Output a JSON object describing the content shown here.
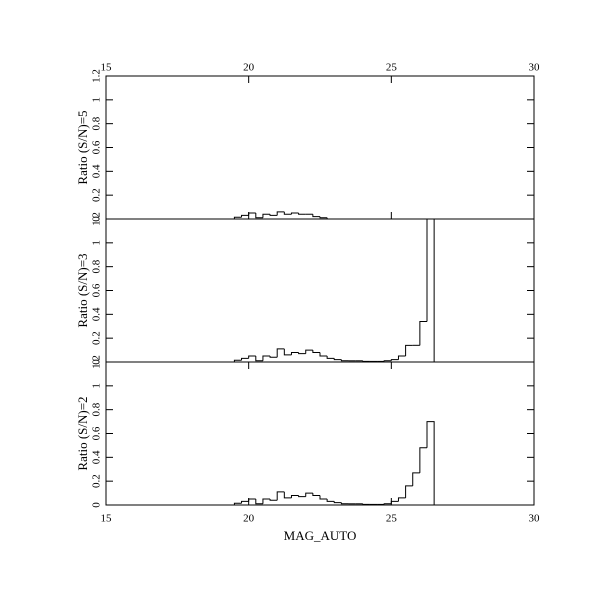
{
  "chart_data": [
    {
      "type": "histogram",
      "ylabel": "Ratio (S/N)=5",
      "bins": [
        19.5,
        19.75,
        20,
        20.25,
        20.5,
        20.75,
        21,
        21.25,
        21.5,
        21.75,
        22,
        22.25,
        22.5,
        22.75,
        23,
        23.25,
        23.5,
        23.75,
        24,
        24.25,
        24.5,
        24.75,
        25,
        25.25,
        25.5,
        25.75,
        26,
        26.25,
        26.5
      ],
      "values": [
        0.015,
        0.03,
        0.05,
        0.01,
        0.04,
        0.03,
        0.06,
        0.04,
        0.05,
        0.04,
        0.04,
        0.02,
        0.01,
        0,
        0,
        0,
        0,
        0,
        0,
        0,
        0,
        0,
        0,
        0,
        0,
        0,
        0,
        0
      ],
      "color": "#000000",
      "xlim": [
        15,
        30
      ],
      "xticks": [
        15,
        20,
        25,
        30
      ],
      "xtick_side": "top",
      "ylim": [
        0,
        1.2
      ],
      "yticks": [
        0,
        0.2,
        0.4,
        0.6,
        0.8,
        1,
        1.2
      ]
    },
    {
      "type": "histogram",
      "ylabel": "Ratio (S/N)=3",
      "bins": [
        19.5,
        19.75,
        20,
        20.25,
        20.5,
        20.75,
        21,
        21.25,
        21.5,
        21.75,
        22,
        22.25,
        22.5,
        22.75,
        23,
        23.25,
        23.5,
        23.75,
        24,
        24.25,
        24.5,
        24.75,
        25,
        25.25,
        25.5,
        25.75,
        26,
        26.25,
        26.5
      ],
      "values": [
        0.015,
        0.03,
        0.05,
        0.01,
        0.05,
        0.04,
        0.11,
        0.06,
        0.08,
        0.07,
        0.1,
        0.08,
        0.05,
        0.03,
        0.02,
        0.01,
        0.01,
        0.01,
        0.005,
        0.005,
        0.005,
        0.01,
        0.02,
        0.05,
        0.14,
        0.14,
        0.34,
        1.3
      ],
      "color": "#000000",
      "xlim": [
        15,
        30
      ],
      "ylim": [
        0,
        1.2
      ],
      "yticks": [
        0,
        0.2,
        0.4,
        0.6,
        0.8,
        1,
        1.2
      ]
    },
    {
      "type": "histogram",
      "ylabel": "Ratio (S/N)=2",
      "xlabel": "MAG_AUTO",
      "bins": [
        19.5,
        19.75,
        20,
        20.25,
        20.5,
        20.75,
        21,
        21.25,
        21.5,
        21.75,
        22,
        22.25,
        22.5,
        22.75,
        23,
        23.25,
        23.5,
        23.75,
        24,
        24.25,
        24.5,
        24.75,
        25,
        25.25,
        25.5,
        25.75,
        26,
        26.25,
        26.5
      ],
      "values": [
        0.015,
        0.03,
        0.05,
        0.01,
        0.05,
        0.04,
        0.11,
        0.06,
        0.08,
        0.07,
        0.1,
        0.08,
        0.05,
        0.03,
        0.02,
        0.01,
        0.01,
        0.01,
        0.005,
        0.005,
        0.005,
        0.01,
        0.03,
        0.06,
        0.16,
        0.27,
        0.48,
        0.7
      ],
      "color": "#000000",
      "xlim": [
        15,
        30
      ],
      "xticks": [
        15,
        20,
        25,
        30
      ],
      "xtick_side": "bottom",
      "ylim": [
        0,
        1.2
      ],
      "yticks": [
        0,
        0.2,
        0.4,
        0.6,
        0.8,
        1,
        1.2
      ]
    }
  ]
}
